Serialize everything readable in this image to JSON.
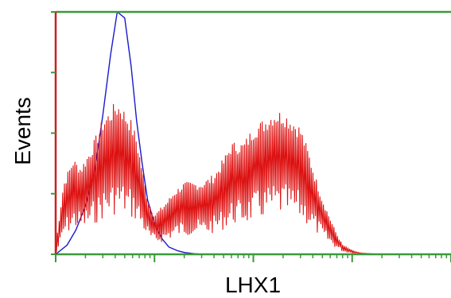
{
  "chart_data": {
    "type": "line",
    "title": "",
    "xlabel": "LHX1",
    "ylabel": "Events",
    "x_scale": "log",
    "xlim": [
      1,
      10000
    ],
    "ylim": [
      0,
      4
    ],
    "grid": false,
    "legend": "none",
    "colors": {
      "axis": "#3a9a3a",
      "left_axis": "#c82020"
    },
    "series": [
      {
        "color": "#1a1acc",
        "style": "smooth",
        "x": [
          1,
          1.3,
          1.6,
          2,
          2.5,
          3,
          3.6,
          4.2,
          5,
          5.8,
          6.6,
          7.5,
          8.5,
          10,
          12,
          14,
          17,
          20,
          25,
          30,
          40
        ],
        "y": [
          0,
          0.15,
          0.4,
          0.8,
          1.4,
          2.3,
          3.3,
          4.0,
          3.9,
          3.1,
          2.2,
          1.5,
          0.9,
          0.5,
          0.25,
          0.12,
          0.06,
          0.03,
          0.01,
          0,
          0
        ]
      },
      {
        "color": "#dd1111",
        "style": "jagged",
        "x": [
          1,
          1.2,
          1.5,
          1.8,
          2.2,
          2.6,
          3,
          3.5,
          4,
          4.5,
          5,
          5.7,
          6.5,
          7.5,
          8.5,
          10,
          12,
          14,
          16,
          20,
          25,
          30,
          40,
          50,
          60,
          80,
          100,
          130,
          160,
          200,
          250,
          300,
          360,
          420,
          500,
          600,
          700,
          800,
          1000,
          1200,
          1500,
          2000
        ],
        "y": [
          0.1,
          0.9,
          1.2,
          1.1,
          1.3,
          1.5,
          1.7,
          1.8,
          1.9,
          1.9,
          1.8,
          1.7,
          1.5,
          1.1,
          0.7,
          0.5,
          0.6,
          0.7,
          0.8,
          0.9,
          0.9,
          0.9,
          1.0,
          1.2,
          1.4,
          1.4,
          1.6,
          1.7,
          1.8,
          1.8,
          1.7,
          1.6,
          1.3,
          1.0,
          0.7,
          0.45,
          0.25,
          0.12,
          0.05,
          0.02,
          0.01,
          0
        ]
      }
    ]
  }
}
